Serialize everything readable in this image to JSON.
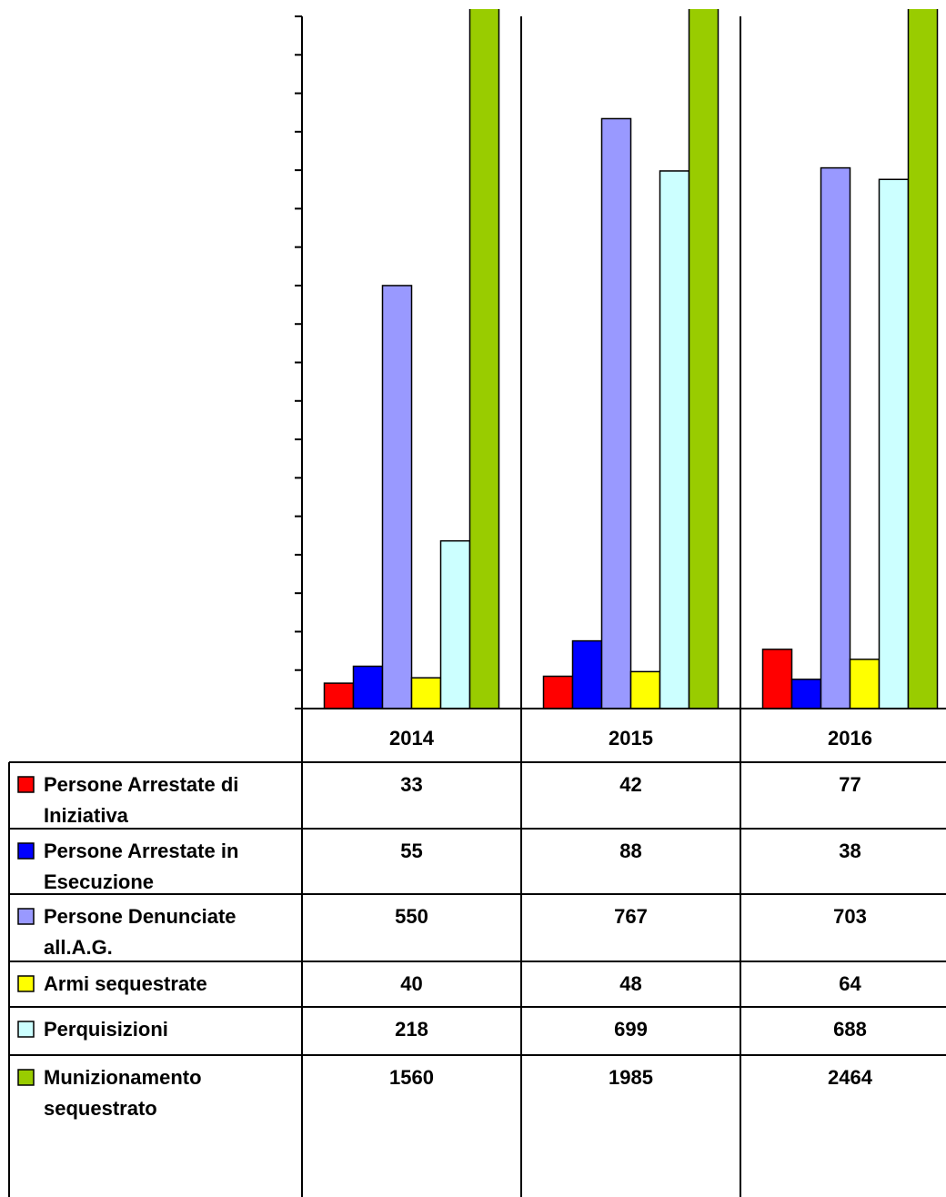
{
  "chart_data": {
    "type": "bar",
    "categories": [
      "2014",
      "2015",
      "2016"
    ],
    "series": [
      {
        "name": "Persone Arrestate di Iniziativa",
        "color": "#ff0000",
        "values": [
          33,
          42,
          77
        ]
      },
      {
        "name": "Persone Arrestate in Esecuzione",
        "color": "#0000ff",
        "values": [
          55,
          88,
          38
        ]
      },
      {
        "name": "Persone Denunciate all.A.G.",
        "color": "#9999ff",
        "values": [
          550,
          767,
          703
        ]
      },
      {
        "name": "Armi sequestrate",
        "color": "#ffff00",
        "values": [
          40,
          48,
          64
        ]
      },
      {
        "name": "Perquisizioni",
        "color": "#ccffff",
        "values": [
          218,
          699,
          688
        ]
      },
      {
        "name": "Munizionamento sequestrato",
        "color": "#99cc00",
        "values": [
          1560,
          1985,
          2464
        ]
      }
    ],
    "ylim": [
      0,
      900
    ],
    "yticks": [
      0,
      50,
      100,
      150,
      200,
      250,
      300,
      350,
      400,
      450,
      500,
      550,
      600,
      650,
      700,
      750,
      800,
      850,
      900
    ]
  }
}
